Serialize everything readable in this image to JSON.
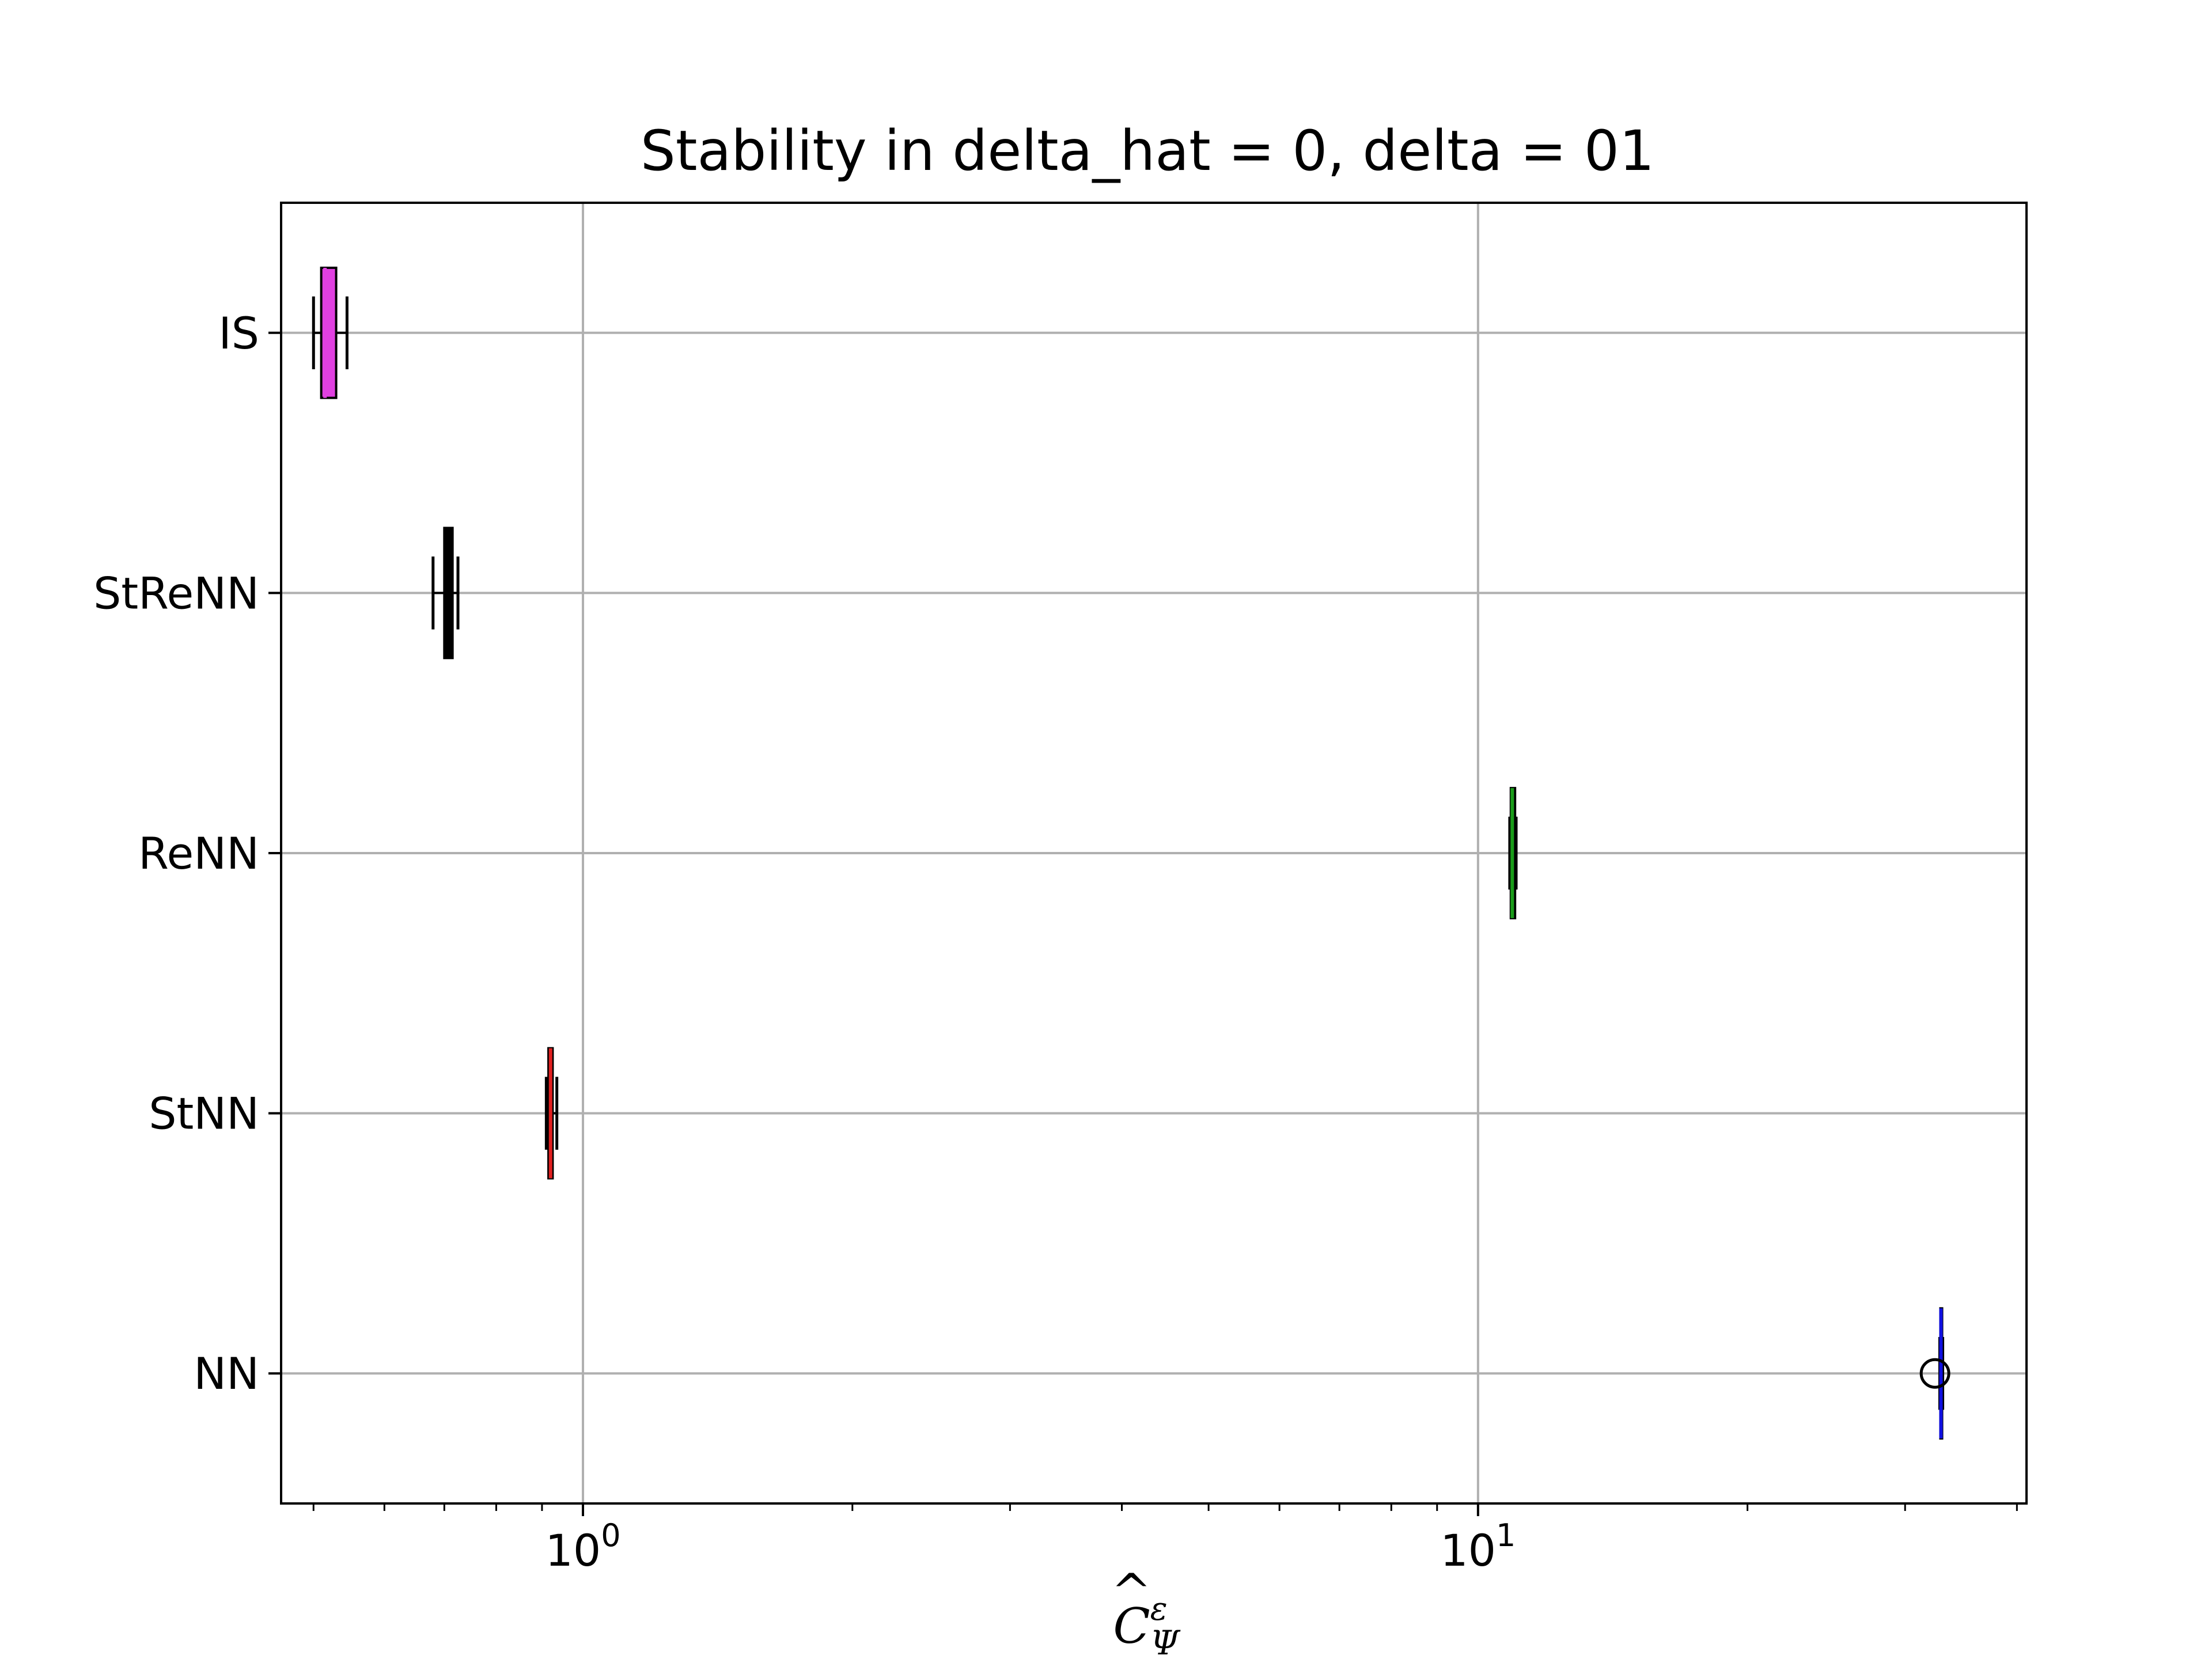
{
  "chart_data": {
    "type": "boxplot",
    "orientation": "horizontal",
    "title": "Stability in delta_hat = 0, delta = 01",
    "xlabel": {
      "base": "C",
      "hat": "^",
      "sup": "ε",
      "sub": "Ψ"
    },
    "xscale": "log",
    "xlim": [
      0.46,
      41
    ],
    "x_tick_labels": [
      {
        "value": 1,
        "base": "10",
        "exp": "0"
      },
      {
        "value": 10,
        "base": "10",
        "exp": "1"
      }
    ],
    "grid": true,
    "categories": [
      "IS",
      "StReNN",
      "ReNN",
      "StNN",
      "NN"
    ],
    "series": [
      {
        "name": "IS",
        "color": "#e040e0",
        "whisker_low": 0.5,
        "q1": 0.51,
        "median": 0.515,
        "q3": 0.53,
        "whisker_high": 0.545,
        "outliers": []
      },
      {
        "name": "StReNN",
        "color": "#000000",
        "whisker_low": 0.68,
        "q1": 0.7,
        "median": 0.705,
        "q3": 0.715,
        "whisker_high": 0.725,
        "outliers": []
      },
      {
        "name": "ReNN",
        "color": "#1a9c1a",
        "whisker_low": 10.85,
        "q1": 10.88,
        "median": 10.92,
        "q3": 11.0,
        "whisker_high": 11.03,
        "outliers": []
      },
      {
        "name": "StNN",
        "color": "#e02020",
        "whisker_low": 0.91,
        "q1": 0.915,
        "median": 0.92,
        "q3": 0.925,
        "whisker_high": 0.935,
        "outliers": []
      },
      {
        "name": "NN",
        "color": "#1010e0",
        "whisker_low": 32.8,
        "q1": 32.85,
        "median": 32.9,
        "q3": 33.0,
        "whisker_high": 33.05,
        "outliers": [
          32.4
        ]
      }
    ]
  }
}
